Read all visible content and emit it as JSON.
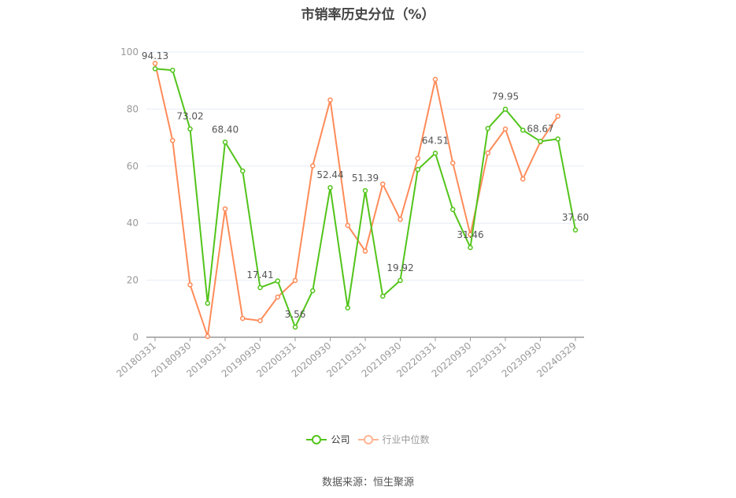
{
  "title": "市销率历史分位（%）",
  "source": "数据来源：恒生聚源",
  "legend": [
    {
      "label": "公司",
      "color": "#52c41a"
    },
    {
      "label": "行业中位数",
      "color": "#ff8b59"
    }
  ],
  "chart_data": {
    "type": "line",
    "title": "市销率历史分位（%）",
    "xlabel": "",
    "ylabel": "",
    "ylim": [
      0,
      100
    ],
    "yticks": [
      0,
      20,
      40,
      60,
      80,
      100
    ],
    "grid": true,
    "legend_position": "bottom",
    "x_tick_labels": [
      "20180331",
      "20180930",
      "20190331",
      "20190930",
      "20200331",
      "20200930",
      "20210331",
      "20210930",
      "20220331",
      "20220930",
      "20230331",
      "20230930",
      "20240329"
    ],
    "x": [
      "20180331",
      "20180630",
      "20180930",
      "20181231",
      "20190331",
      "20190630",
      "20190930",
      "20191231",
      "20200331",
      "20200630",
      "20200930",
      "20201231",
      "20210331",
      "20210630",
      "20210930",
      "20211231",
      "20220331",
      "20220630",
      "20220930",
      "20221231",
      "20230331",
      "20230630",
      "20230930",
      "20231231",
      "20240329"
    ],
    "series": [
      {
        "name": "公司",
        "color": "#52c41a",
        "values": [
          94.13,
          93.6,
          73.02,
          11.9,
          68.4,
          58.3,
          17.41,
          19.7,
          3.56,
          16.3,
          52.44,
          10.3,
          51.39,
          14.4,
          19.92,
          58.8,
          64.51,
          44.8,
          31.46,
          73.2,
          79.95,
          72.6,
          68.67,
          69.5,
          37.6
        ],
        "labels": {
          "0": "94.13",
          "2": "73.02",
          "4": "68.40",
          "6": "17.41",
          "8": "3.56",
          "10": "52.44",
          "12": "51.39",
          "14": "19.92",
          "16": "64.51",
          "18": "31.46",
          "20": "79.95",
          "22": "68.67",
          "24": "37.60"
        }
      },
      {
        "name": "行业中位数",
        "color": "#ff8b59",
        "values": [
          96.0,
          69.0,
          18.4,
          0.3,
          45.0,
          6.6,
          5.8,
          14.1,
          19.9,
          60.1,
          83.2,
          39.2,
          30.2,
          53.7,
          41.3,
          62.7,
          90.4,
          61.1,
          36.0,
          64.6,
          73.0,
          55.5,
          68.5,
          77.5,
          null
        ]
      }
    ]
  }
}
